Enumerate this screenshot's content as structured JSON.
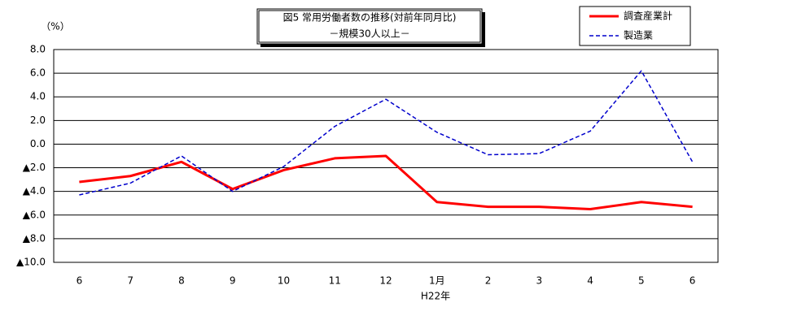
{
  "chart_data": {
    "type": "line",
    "title": "図5 常用労働者数の推移(対前年同月比)",
    "subtitle": "－規模30人以上－",
    "y_label": "（%）",
    "x_label": "H22年",
    "categories": [
      "6",
      "7",
      "8",
      "9",
      "10",
      "11",
      "12",
      "1月",
      "2",
      "3",
      "4",
      "5",
      "6"
    ],
    "series": [
      {
        "name": "調査産業計",
        "color": "#ff0000",
        "line_style": "solid",
        "values": [
          -3.2,
          -2.7,
          -1.5,
          -3.8,
          -2.2,
          -1.2,
          -1.0,
          -4.9,
          -5.3,
          -5.3,
          -5.5,
          -4.9,
          -5.3
        ]
      },
      {
        "name": "製造業",
        "color": "#0000cc",
        "line_style": "dashed",
        "values": [
          -4.3,
          -3.3,
          -1.0,
          -4.0,
          -1.9,
          1.5,
          3.8,
          1.0,
          -0.9,
          -0.8,
          1.1,
          6.2,
          -1.5
        ]
      }
    ],
    "ylim": [
      -10,
      8
    ],
    "yticks": [
      {
        "value": 8,
        "label": "8.0"
      },
      {
        "value": 6,
        "label": "6.0"
      },
      {
        "value": 4,
        "label": "4.0"
      },
      {
        "value": 2,
        "label": "2.0"
      },
      {
        "value": 0,
        "label": "0.0"
      },
      {
        "value": -2,
        "label": "▲2.0"
      },
      {
        "value": -4,
        "label": "▲4.0"
      },
      {
        "value": -6,
        "label": "▲6.0"
      },
      {
        "value": -8,
        "label": "▲8.0"
      },
      {
        "value": -10,
        "label": "▲10.0"
      }
    ],
    "grid": true
  }
}
